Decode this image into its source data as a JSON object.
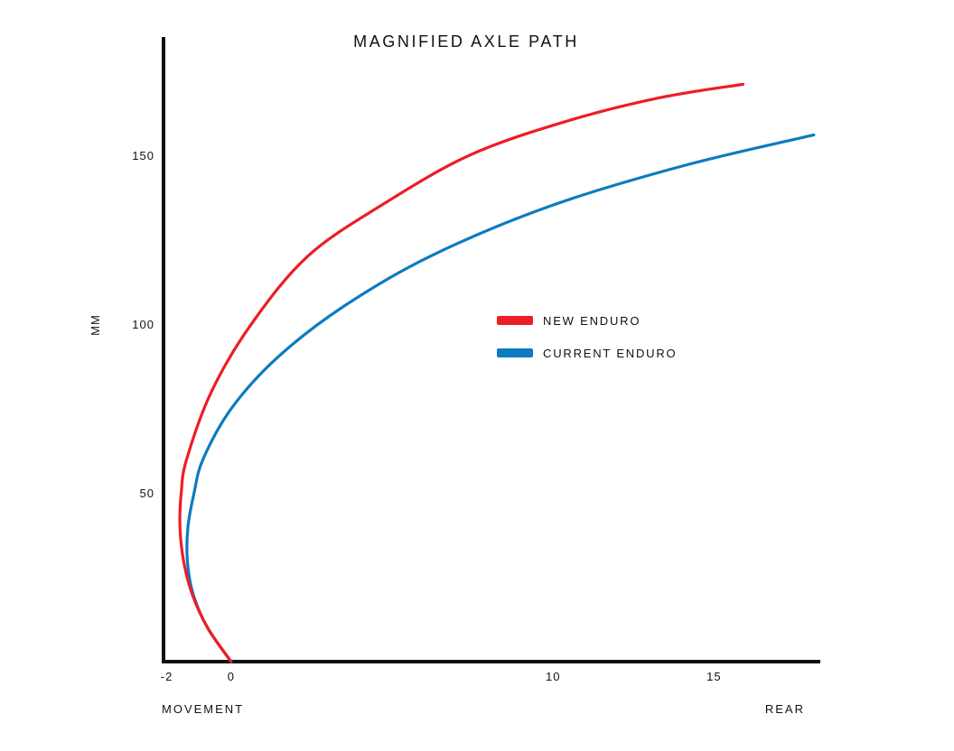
{
  "chart_data": {
    "type": "line",
    "title": "MAGNIFIED AXLE PATH",
    "ylabel": "MM",
    "xlabel_left": "MOVEMENT",
    "xlabel_right": "REAR",
    "xlim": [
      -2.1,
      18.3
    ],
    "ylim": [
      0,
      185
    ],
    "x_ticks": [
      {
        "value": -2,
        "label": "-2"
      },
      {
        "value": 0,
        "label": "0"
      },
      {
        "value": 10,
        "label": "10"
      },
      {
        "value": 15,
        "label": "15"
      }
    ],
    "y_ticks": [
      {
        "value": 50,
        "label": "50"
      },
      {
        "value": 100,
        "label": "100"
      },
      {
        "value": 150,
        "label": "150"
      }
    ],
    "grid": false,
    "legend_position": "center-right",
    "series": [
      {
        "name": "NEW ENDURO",
        "color": "#ee1c25",
        "x": [
          0,
          -0.73,
          -1.21,
          -1.48,
          -1.59,
          -1.55,
          -1.38,
          -0.61,
          0.63,
          2.37,
          4.64,
          7.41,
          10.4,
          13.3,
          15.9
        ],
        "y": [
          0,
          10,
          20,
          30,
          40,
          50,
          60,
          80,
          100,
          120,
          135,
          150,
          160,
          167,
          171
        ]
      },
      {
        "name": "CURRENT ENDURO",
        "color": "#0d7bc0",
        "x": [
          0,
          -0.73,
          -1.18,
          -1.36,
          -1.34,
          -1.15,
          -0.87,
          0.01,
          1.43,
          3.46,
          6.17,
          9.93,
          14.1,
          18.1
        ],
        "y": [
          0,
          10,
          20,
          30,
          40,
          50,
          60,
          75,
          90,
          105,
          120,
          135,
          147,
          156
        ]
      }
    ]
  }
}
